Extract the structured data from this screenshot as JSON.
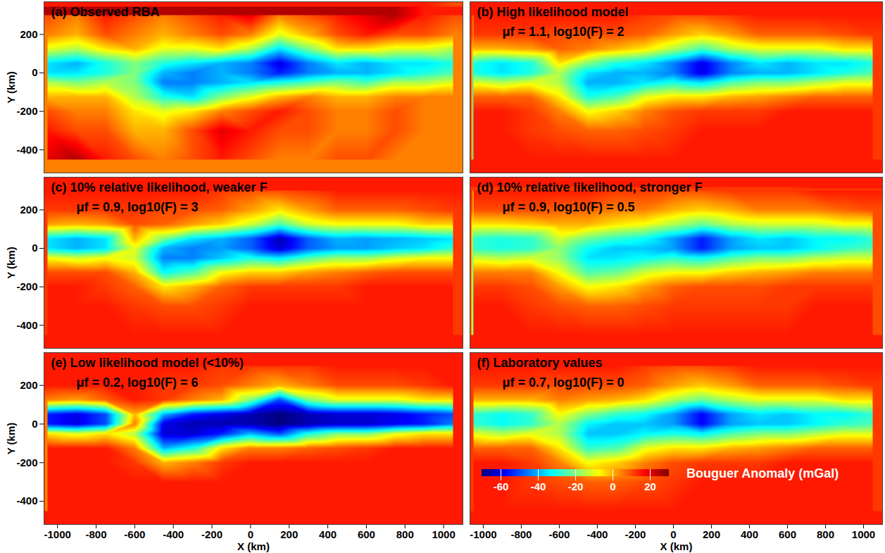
{
  "chart_data": {
    "type": "heatmap",
    "x_label": "X (km)",
    "y_label": "Y (km)",
    "xlim": [
      -1070,
      1100
    ],
    "ylim": [
      -520,
      370
    ],
    "xticks": [
      -1000,
      -800,
      -600,
      -400,
      -200,
      0,
      200,
      400,
      600,
      800,
      1000
    ],
    "yticks": [
      -400,
      -200,
      0,
      200
    ],
    "grid_x": [
      -1050,
      -900,
      -750,
      -600,
      -450,
      -300,
      -150,
      0,
      150,
      300,
      450,
      600,
      750,
      900,
      1050
    ],
    "grid_y": [
      300,
      200,
      125,
      50,
      0,
      -50,
      -125,
      -200,
      -300,
      -450
    ],
    "colorbar": {
      "label": "Bouguer Anomaly (mGal)",
      "range": [
        -70,
        30
      ],
      "ticks": [
        -60,
        -40,
        -20,
        0,
        20
      ]
    },
    "panels": [
      {
        "title": "(a) Observed RBA",
        "cells": [
          [
            10,
            5,
            15,
            10,
            5,
            10,
            15,
            20,
            5,
            10,
            15,
            20,
            25,
            15,
            10
          ],
          [
            5,
            0,
            10,
            5,
            0,
            5,
            10,
            5,
            -10,
            0,
            10,
            15,
            10,
            10,
            5
          ],
          [
            -10,
            -15,
            -5,
            0,
            -10,
            -10,
            -5,
            -15,
            -35,
            -20,
            -5,
            -5,
            -10,
            -10,
            -15
          ],
          [
            -35,
            -40,
            -30,
            -20,
            -30,
            -35,
            -40,
            -45,
            -60,
            -45,
            -35,
            -40,
            -35,
            -35,
            -30
          ],
          [
            -35,
            -35,
            -30,
            -20,
            -40,
            -45,
            -40,
            -45,
            -55,
            -45,
            -40,
            -40,
            -35,
            -30,
            -25
          ],
          [
            -15,
            -20,
            -15,
            -20,
            -45,
            -45,
            -40,
            -35,
            -30,
            -25,
            -20,
            -25,
            -15,
            -15,
            -10
          ],
          [
            0,
            0,
            0,
            -15,
            -30,
            -35,
            -20,
            -10,
            0,
            5,
            0,
            0,
            5,
            5,
            5
          ],
          [
            10,
            5,
            5,
            -5,
            -10,
            -5,
            5,
            10,
            15,
            10,
            5,
            5,
            10,
            5,
            5
          ],
          [
            15,
            10,
            10,
            0,
            0,
            10,
            20,
            15,
            10,
            10,
            5,
            5,
            10,
            5,
            5
          ],
          [
            20,
            25,
            15,
            10,
            5,
            10,
            15,
            10,
            5,
            5,
            10,
            10,
            5,
            5,
            5
          ]
        ]
      },
      {
        "title": "(b) High likelihood model",
        "subtitle": "μf = 1.1, log10(F) = 2",
        "cells": [
          [
            15,
            15,
            15,
            15,
            15,
            15,
            12,
            10,
            10,
            12,
            15,
            15,
            15,
            15,
            15
          ],
          [
            12,
            12,
            12,
            10,
            10,
            10,
            8,
            2,
            -3,
            2,
            8,
            8,
            8,
            10,
            12
          ],
          [
            0,
            0,
            2,
            8,
            5,
            0,
            -5,
            -15,
            -25,
            -15,
            -10,
            -10,
            -10,
            -5,
            -5
          ],
          [
            -30,
            -35,
            -30,
            -5,
            -20,
            -30,
            -35,
            -45,
            -60,
            -45,
            -35,
            -40,
            -35,
            -35,
            -30
          ],
          [
            -30,
            -35,
            -30,
            -15,
            -35,
            -40,
            -40,
            -45,
            -60,
            -45,
            -40,
            -40,
            -35,
            -30,
            -25
          ],
          [
            -10,
            -15,
            -10,
            -15,
            -40,
            -40,
            -35,
            -30,
            -35,
            -25,
            -20,
            -20,
            -15,
            -10,
            -10
          ],
          [
            8,
            8,
            8,
            -5,
            -30,
            -25,
            -10,
            -5,
            -5,
            0,
            2,
            5,
            8,
            8,
            8
          ],
          [
            15,
            15,
            12,
            5,
            -8,
            -3,
            5,
            10,
            12,
            12,
            12,
            15,
            15,
            15,
            15
          ],
          [
            15,
            15,
            12,
            10,
            8,
            8,
            10,
            12,
            15,
            15,
            15,
            15,
            15,
            15,
            15
          ],
          [
            15,
            15,
            15,
            15,
            15,
            15,
            15,
            15,
            15,
            15,
            15,
            15,
            15,
            15,
            15
          ]
        ]
      },
      {
        "title": "(c) 10% relative likelihood, weaker F",
        "subtitle": "μf = 0.9, log10(F) = 3",
        "cells": [
          [
            15,
            15,
            15,
            15,
            15,
            15,
            12,
            10,
            10,
            12,
            15,
            15,
            15,
            15,
            15
          ],
          [
            12,
            12,
            12,
            12,
            10,
            10,
            8,
            2,
            -5,
            2,
            8,
            8,
            8,
            10,
            12
          ],
          [
            2,
            0,
            2,
            10,
            8,
            2,
            -3,
            -12,
            -25,
            -12,
            -8,
            -8,
            -8,
            -3,
            -3
          ],
          [
            -35,
            -40,
            -35,
            0,
            -20,
            -35,
            -40,
            -48,
            -65,
            -48,
            -40,
            -42,
            -40,
            -38,
            -35
          ],
          [
            -35,
            -40,
            -35,
            -10,
            -40,
            -45,
            -42,
            -48,
            -62,
            -48,
            -42,
            -42,
            -38,
            -35,
            -28
          ],
          [
            -8,
            -12,
            -8,
            -12,
            -45,
            -45,
            -38,
            -30,
            -35,
            -25,
            -18,
            -18,
            -12,
            -8,
            -8
          ],
          [
            10,
            10,
            10,
            0,
            -32,
            -25,
            -8,
            -3,
            -3,
            2,
            5,
            8,
            10,
            10,
            10
          ],
          [
            15,
            15,
            12,
            8,
            -5,
            0,
            8,
            12,
            12,
            12,
            12,
            15,
            15,
            15,
            15
          ],
          [
            15,
            15,
            15,
            12,
            10,
            10,
            12,
            15,
            15,
            15,
            15,
            15,
            15,
            15,
            15
          ],
          [
            15,
            15,
            15,
            15,
            15,
            15,
            15,
            15,
            15,
            15,
            15,
            15,
            15,
            15,
            15
          ]
        ]
      },
      {
        "title": "(d) 10% relative likelihood, stronger F",
        "subtitle": "μf = 0.9, log10(F) = 0.5",
        "cells": [
          [
            15,
            15,
            15,
            15,
            15,
            12,
            12,
            10,
            10,
            12,
            12,
            12,
            15,
            15,
            15
          ],
          [
            10,
            10,
            10,
            8,
            8,
            5,
            5,
            0,
            -3,
            0,
            5,
            5,
            5,
            8,
            10
          ],
          [
            -5,
            -5,
            -3,
            0,
            0,
            -5,
            -8,
            -15,
            -22,
            -15,
            -12,
            -12,
            -12,
            -8,
            -8
          ],
          [
            -28,
            -30,
            -28,
            -12,
            -22,
            -28,
            -32,
            -42,
            -55,
            -42,
            -35,
            -38,
            -33,
            -33,
            -28
          ],
          [
            -28,
            -30,
            -28,
            -18,
            -32,
            -38,
            -38,
            -42,
            -55,
            -42,
            -38,
            -38,
            -33,
            -28,
            -25
          ],
          [
            -12,
            -15,
            -12,
            -18,
            -35,
            -35,
            -32,
            -28,
            -32,
            -25,
            -20,
            -20,
            -15,
            -12,
            -12
          ],
          [
            5,
            5,
            5,
            -8,
            -25,
            -22,
            -12,
            -8,
            -8,
            -3,
            0,
            2,
            5,
            5,
            5
          ],
          [
            12,
            12,
            10,
            2,
            -8,
            -5,
            2,
            8,
            10,
            10,
            10,
            12,
            12,
            12,
            12
          ],
          [
            15,
            15,
            12,
            10,
            8,
            8,
            10,
            12,
            12,
            12,
            12,
            12,
            15,
            15,
            15
          ],
          [
            15,
            15,
            15,
            15,
            15,
            15,
            15,
            15,
            15,
            15,
            15,
            15,
            15,
            15,
            15
          ]
        ]
      },
      {
        "title": "(e) Low likelihood model (<10%)",
        "subtitle": "μf = 0.2, log10(F) = 6",
        "cells": [
          [
            15,
            15,
            15,
            15,
            15,
            15,
            12,
            12,
            12,
            12,
            15,
            15,
            15,
            15,
            15
          ],
          [
            15,
            15,
            15,
            15,
            12,
            12,
            10,
            5,
            0,
            5,
            10,
            10,
            10,
            12,
            15
          ],
          [
            5,
            2,
            8,
            15,
            12,
            5,
            0,
            -20,
            -50,
            -20,
            -10,
            -10,
            -10,
            -5,
            -5
          ],
          [
            -55,
            -60,
            -50,
            0,
            -40,
            -55,
            -60,
            -65,
            -70,
            -65,
            -62,
            -62,
            -60,
            -55,
            -50
          ],
          [
            -55,
            -60,
            -50,
            5,
            -60,
            -65,
            -65,
            -65,
            -70,
            -65,
            -62,
            -62,
            -58,
            -55,
            -45
          ],
          [
            -5,
            -10,
            -5,
            -15,
            -62,
            -62,
            -55,
            -40,
            -50,
            -30,
            -20,
            -20,
            -10,
            -5,
            -5
          ],
          [
            15,
            15,
            15,
            5,
            -40,
            -30,
            -5,
            5,
            5,
            8,
            10,
            12,
            15,
            15,
            15
          ],
          [
            15,
            15,
            15,
            12,
            0,
            5,
            12,
            15,
            15,
            15,
            15,
            15,
            15,
            15,
            15
          ],
          [
            15,
            15,
            15,
            15,
            15,
            15,
            15,
            15,
            15,
            15,
            15,
            15,
            15,
            15,
            15
          ],
          [
            15,
            15,
            15,
            15,
            15,
            15,
            15,
            15,
            15,
            15,
            15,
            15,
            15,
            15,
            15
          ]
        ]
      },
      {
        "title": "(f) Laboratory values",
        "subtitle": "μf = 0.7, log10(F) = 0",
        "cells": [
          [
            15,
            15,
            15,
            15,
            15,
            15,
            12,
            10,
            10,
            12,
            15,
            15,
            15,
            15,
            15
          ],
          [
            12,
            12,
            12,
            10,
            10,
            10,
            8,
            2,
            -2,
            2,
            8,
            8,
            8,
            10,
            12
          ],
          [
            0,
            0,
            0,
            5,
            2,
            0,
            -5,
            -15,
            -22,
            -15,
            -10,
            -10,
            -10,
            -5,
            -5
          ],
          [
            -28,
            -32,
            -28,
            -8,
            -20,
            -28,
            -32,
            -42,
            -58,
            -42,
            -35,
            -38,
            -33,
            -33,
            -28
          ],
          [
            -28,
            -32,
            -28,
            -15,
            -33,
            -38,
            -38,
            -42,
            -58,
            -42,
            -38,
            -38,
            -33,
            -28,
            -25
          ],
          [
            -10,
            -15,
            -10,
            -15,
            -38,
            -38,
            -33,
            -30,
            -33,
            -25,
            -20,
            -20,
            -15,
            -10,
            -10
          ],
          [
            8,
            8,
            8,
            -5,
            -28,
            -25,
            -10,
            -5,
            -5,
            0,
            2,
            5,
            8,
            8,
            8
          ],
          [
            15,
            15,
            12,
            5,
            -8,
            -3,
            5,
            10,
            12,
            12,
            12,
            15,
            15,
            15,
            15
          ],
          [
            15,
            15,
            12,
            10,
            8,
            8,
            10,
            12,
            15,
            15,
            15,
            15,
            15,
            15,
            15
          ],
          [
            15,
            15,
            15,
            15,
            15,
            15,
            15,
            15,
            15,
            15,
            15,
            15,
            15,
            15,
            15
          ]
        ]
      }
    ]
  }
}
